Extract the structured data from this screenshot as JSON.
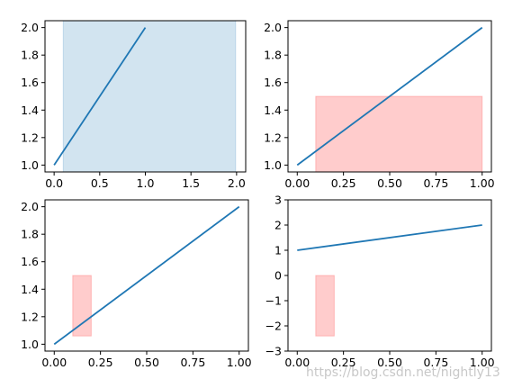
{
  "watermark": "https://blog.csdn.net/nightly13",
  "chart_data": [
    {
      "type": "line",
      "xlim": [
        -0.1,
        2.1
      ],
      "ylim": [
        0.95,
        2.05
      ],
      "xticks": [
        0.0,
        0.5,
        1.0,
        1.5,
        2.0
      ],
      "xtick_labels": [
        "0.0",
        "0.5",
        "1.0",
        "1.5",
        "2.0"
      ],
      "yticks": [
        1.0,
        1.2,
        1.4,
        1.6,
        1.8,
        2.0
      ],
      "ytick_labels": [
        "1.0",
        "1.2",
        "1.4",
        "1.6",
        "1.8",
        "2.0"
      ],
      "series": [
        {
          "x": [
            0,
            1
          ],
          "y": [
            1,
            2
          ],
          "color": "#1f77b4"
        }
      ],
      "rects": [
        {
          "x0": 0.1,
          "x1": 1.99,
          "y0": 0.95,
          "y1": 2.05,
          "color": "#1f77b4",
          "opacity": 0.2
        }
      ]
    },
    {
      "type": "line",
      "xlim": [
        -0.05,
        1.05
      ],
      "ylim": [
        0.95,
        2.05
      ],
      "xticks": [
        0.0,
        0.25,
        0.5,
        0.75,
        1.0
      ],
      "xtick_labels": [
        "0.00",
        "0.25",
        "0.50",
        "0.75",
        "1.00"
      ],
      "yticks": [
        1.0,
        1.2,
        1.4,
        1.6,
        1.8,
        2.0
      ],
      "ytick_labels": [
        "1.0",
        "1.2",
        "1.4",
        "1.6",
        "1.8",
        "2.0"
      ],
      "series": [
        {
          "x": [
            0,
            1
          ],
          "y": [
            1,
            2
          ],
          "color": "#1f77b4"
        }
      ],
      "rects": [
        {
          "x0": 0.1,
          "x1": 1.0,
          "y0": 0.95,
          "y1": 1.5,
          "color": "#ff0000",
          "opacity": 0.2
        }
      ]
    },
    {
      "type": "line",
      "xlim": [
        -0.05,
        1.05
      ],
      "ylim": [
        0.95,
        2.05
      ],
      "xticks": [
        0.0,
        0.25,
        0.5,
        0.75,
        1.0
      ],
      "xtick_labels": [
        "0.00",
        "0.25",
        "0.50",
        "0.75",
        "1.00"
      ],
      "yticks": [
        1.0,
        1.2,
        1.4,
        1.6,
        1.8,
        2.0
      ],
      "ytick_labels": [
        "1.0",
        "1.2",
        "1.4",
        "1.6",
        "1.8",
        "2.0"
      ],
      "series": [
        {
          "x": [
            0,
            1
          ],
          "y": [
            1,
            2
          ],
          "color": "#1f77b4"
        }
      ],
      "rects": [
        {
          "x0": 0.1,
          "x1": 0.2,
          "y0": 1.06,
          "y1": 1.5,
          "color": "#ff0000",
          "opacity": 0.2
        }
      ]
    },
    {
      "type": "line",
      "xlim": [
        -0.05,
        1.05
      ],
      "ylim": [
        -3,
        3
      ],
      "xticks": [
        0.0,
        0.25,
        0.5,
        0.75,
        1.0
      ],
      "xtick_labels": [
        "0.00",
        "0.25",
        "0.50",
        "0.75",
        "1.00"
      ],
      "yticks": [
        -3,
        -2,
        -1,
        0,
        1,
        2,
        3
      ],
      "ytick_labels": [
        "−3",
        "−2",
        "−1",
        "0",
        "1",
        "2",
        "3"
      ],
      "series": [
        {
          "x": [
            0,
            1
          ],
          "y": [
            1,
            2
          ],
          "color": "#1f77b4"
        }
      ],
      "rects": [
        {
          "x0": 0.1,
          "x1": 0.2,
          "y0": -2.4,
          "y1": 0.0,
          "color": "#ff0000",
          "opacity": 0.2
        }
      ]
    }
  ]
}
